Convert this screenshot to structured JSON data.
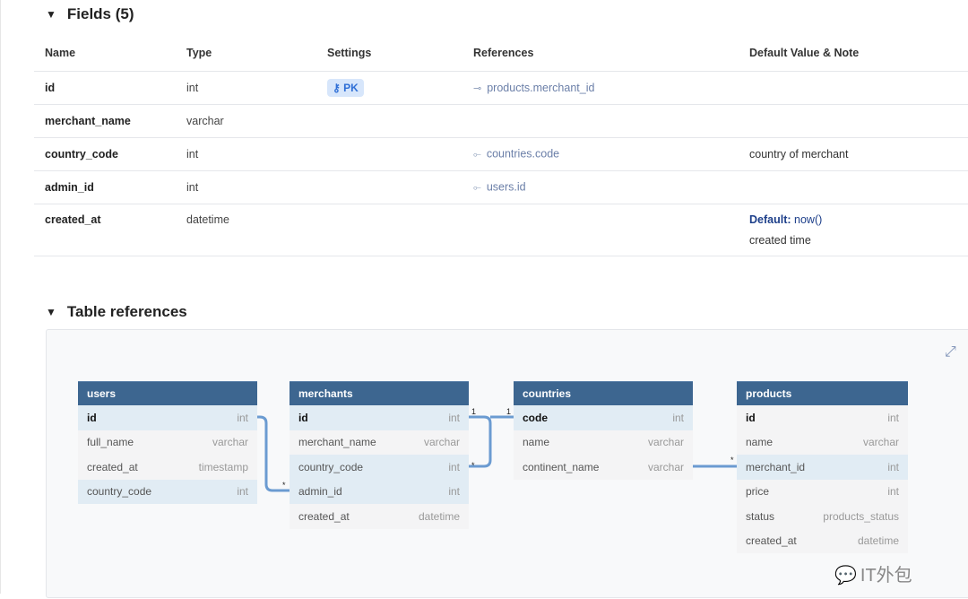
{
  "fields_section": {
    "title": "Fields (5)",
    "columns": [
      "Name",
      "Type",
      "Settings",
      "References",
      "Default Value & Note"
    ],
    "rows": [
      {
        "name": "id",
        "type": "int",
        "setting": "PK",
        "reference": "products.merchant_id",
        "ref_icon": "one-to-many-icon",
        "note": ""
      },
      {
        "name": "merchant_name",
        "type": "varchar",
        "setting": "",
        "reference": "",
        "note": ""
      },
      {
        "name": "country_code",
        "type": "int",
        "setting": "",
        "reference": "countries.code",
        "ref_icon": "many-to-one-icon",
        "note": "country of merchant"
      },
      {
        "name": "admin_id",
        "type": "int",
        "setting": "",
        "reference": "users.id",
        "ref_icon": "many-to-one-icon",
        "note": ""
      },
      {
        "name": "created_at",
        "type": "datetime",
        "setting": "",
        "reference": "",
        "default_label": "Default:",
        "default_value": "now()",
        "note": "created time"
      }
    ]
  },
  "refs_section": {
    "title": "Table references"
  },
  "diagram": {
    "header_color": "#3d6690",
    "line_color": "#6b9bd1",
    "tables": [
      {
        "name": "users",
        "fields": [
          [
            "id",
            "int"
          ],
          [
            "full_name",
            "varchar"
          ],
          [
            "created_at",
            "timestamp"
          ],
          [
            "country_code",
            "int"
          ]
        ]
      },
      {
        "name": "merchants",
        "fields": [
          [
            "id",
            "int"
          ],
          [
            "merchant_name",
            "varchar"
          ],
          [
            "country_code",
            "int"
          ],
          [
            "admin_id",
            "int"
          ],
          [
            "created_at",
            "datetime"
          ]
        ]
      },
      {
        "name": "countries",
        "fields": [
          [
            "code",
            "int"
          ],
          [
            "name",
            "varchar"
          ],
          [
            "continent_name",
            "varchar"
          ]
        ]
      },
      {
        "name": "products",
        "fields": [
          [
            "id",
            "int"
          ],
          [
            "name",
            "varchar"
          ],
          [
            "merchant_id",
            "int"
          ],
          [
            "price",
            "int"
          ],
          [
            "status",
            "products_status"
          ],
          [
            "created_at",
            "datetime"
          ]
        ]
      }
    ],
    "cardinality": {
      "one": "1",
      "many": "*"
    }
  },
  "watermark": "IT外包"
}
